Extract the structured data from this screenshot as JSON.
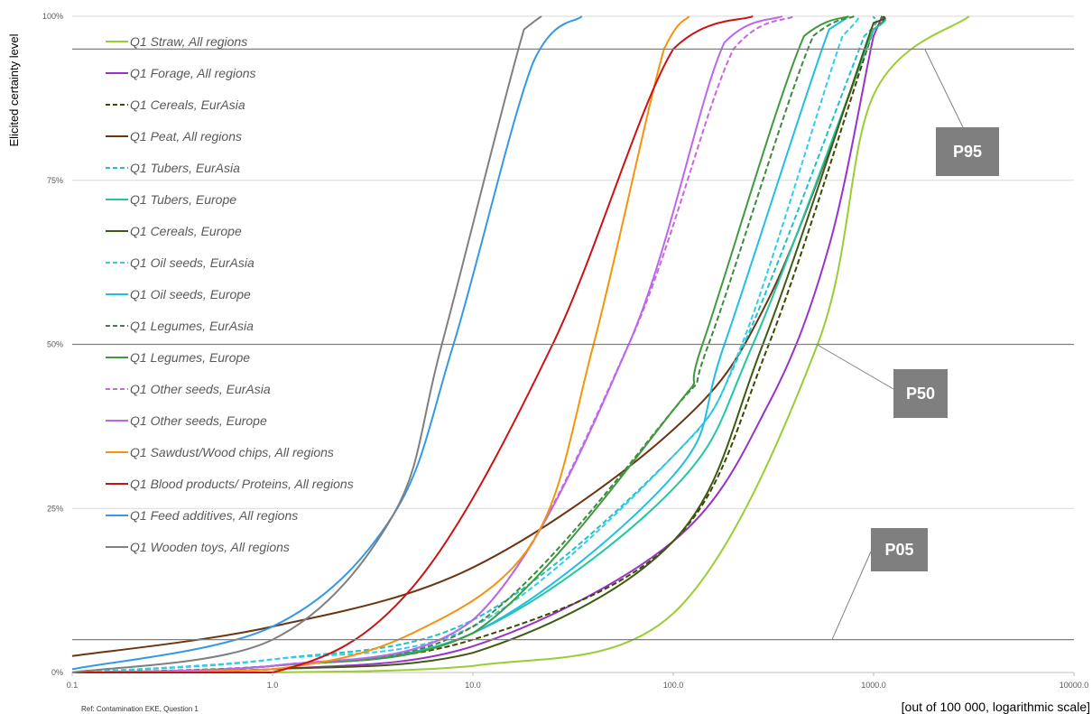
{
  "chart_data": {
    "type": "line",
    "ylabel": "Elicited certainty level",
    "xlabel": "[out of 100 000, logarithmic scale]",
    "reference": "Ref: Contamination EKE, Question 1",
    "x_scale": "log",
    "xlim": [
      0.1,
      10000.0
    ],
    "ylim": [
      0,
      1
    ],
    "x_ticks": [
      "0.1",
      "1.0",
      "10.0",
      "100.0",
      "1000.0",
      "10000.0"
    ],
    "y_ticks": [
      "0%",
      "25%",
      "50%",
      "75%",
      "100%"
    ],
    "grid": true,
    "legend_position": "top-left",
    "percentile_lines": [
      {
        "label": "P05",
        "level": 0.05
      },
      {
        "label": "P50",
        "level": 0.5
      },
      {
        "label": "P95",
        "level": 0.95
      }
    ],
    "series": [
      {
        "name": "Q1 Straw, All regions",
        "color": "#9acd32",
        "dash": "solid",
        "x": [
          1,
          10,
          100,
          525,
          1000,
          3000
        ],
        "y": [
          0,
          0.01,
          0.09,
          0.5,
          0.88,
          1.0
        ]
      },
      {
        "name": "Q1 Forage, All regions",
        "color": "#9932cc",
        "dash": "solid",
        "x": [
          0.1,
          1,
          10,
          100,
          300,
          600,
          1000,
          1100
        ],
        "y": [
          0,
          0.005,
          0.04,
          0.2,
          0.41,
          0.65,
          0.97,
          1.0
        ]
      },
      {
        "name": "Q1 Cereals, EurAsia",
        "color": "#3b4a00",
        "dash": "dash",
        "x": [
          0.1,
          1,
          10,
          100,
          300,
          1000,
          1100
        ],
        "y": [
          0,
          0.01,
          0.05,
          0.2,
          0.5,
          0.98,
          1.0
        ]
      },
      {
        "name": "Q1 Peat, All regions",
        "color": "#6b3510",
        "dash": "solid",
        "x": [
          0.1,
          1,
          10,
          100,
          300,
          1000,
          1100
        ],
        "y": [
          0.025,
          0.07,
          0.16,
          0.37,
          0.57,
          0.98,
          1.0
        ]
      },
      {
        "name": "Q1 Tubers, EurAsia",
        "color": "#20c0c8",
        "dash": "dash",
        "x": [
          0.1,
          1,
          10,
          100,
          225,
          900,
          1000
        ],
        "y": [
          0,
          0.02,
          0.08,
          0.33,
          0.5,
          0.97,
          1.0
        ]
      },
      {
        "name": "Q1 Tubers, Europe",
        "color": "#20c8a0",
        "dash": "solid",
        "x": [
          0.1,
          1,
          10,
          100,
          250,
          1000,
          1100
        ],
        "y": [
          0,
          0.01,
          0.06,
          0.28,
          0.5,
          0.98,
          1.0
        ]
      },
      {
        "name": "Q1 Cereals, Europe",
        "color": "#3d5a10",
        "dash": "solid",
        "x": [
          0.1,
          1,
          10,
          100,
          280,
          1000,
          1100
        ],
        "y": [
          0,
          0.005,
          0.03,
          0.2,
          0.5,
          0.99,
          1.0
        ]
      },
      {
        "name": "Q1 Oil seeds, EurAsia",
        "color": "#33ccee",
        "dash": "dash",
        "x": [
          0.1,
          1,
          10,
          100,
          220,
          700,
          850
        ],
        "y": [
          0,
          0.02,
          0.07,
          0.33,
          0.5,
          0.97,
          1.0
        ]
      },
      {
        "name": "Q1 Oil seeds, Europe",
        "color": "#22bde6",
        "dash": "solid",
        "x": [
          0.1,
          1,
          10,
          100,
          180,
          600,
          750
        ],
        "y": [
          0,
          0.01,
          0.06,
          0.3,
          0.5,
          0.98,
          1.0
        ]
      },
      {
        "name": "Q1 Legumes, EurAsia",
        "color": "#3d8a3d",
        "dash": "dash",
        "x": [
          0.1,
          1,
          10,
          100,
          150,
          500,
          800
        ],
        "y": [
          0,
          0.01,
          0.07,
          0.4,
          0.5,
          0.97,
          1.0
        ]
      },
      {
        "name": "Q1 Legumes, Europe",
        "color": "#3f9a3f",
        "dash": "solid",
        "x": [
          0.1,
          1,
          10,
          100,
          140,
          450,
          750
        ],
        "y": [
          0,
          0.01,
          0.06,
          0.4,
          0.5,
          0.97,
          1.0
        ]
      },
      {
        "name": "Q1 Other seeds, EurAsia",
        "color": "#cc66dd",
        "dash": "dash",
        "x": [
          0.1,
          1,
          10,
          60,
          200,
          400
        ],
        "y": [
          0,
          0.01,
          0.08,
          0.5,
          0.95,
          1.0
        ]
      },
      {
        "name": "Q1 Other seeds, Europe",
        "color": "#bb66ee",
        "dash": "solid",
        "x": [
          0.1,
          1,
          10,
          60,
          180,
          350
        ],
        "y": [
          0,
          0.01,
          0.08,
          0.5,
          0.96,
          1.0
        ]
      },
      {
        "name": "Q1 Sawdust/Wood chips, All regions",
        "color": "#f5930a",
        "dash": "solid",
        "x": [
          0.1,
          1,
          5,
          20,
          40,
          90,
          120
        ],
        "y": [
          0,
          0.005,
          0.06,
          0.2,
          0.5,
          0.95,
          1.0
        ]
      },
      {
        "name": "Q1 Blood products/ Proteins, All regions",
        "color": "#cc1111",
        "dash": "solid",
        "x": [
          0.1,
          1,
          5,
          25,
          100,
          250
        ],
        "y": [
          0,
          0,
          0.13,
          0.5,
          0.95,
          1.0
        ]
      },
      {
        "name": "Q1 Feed additives, All regions",
        "color": "#3399e6",
        "dash": "solid",
        "x": [
          0.1,
          1,
          4,
          8,
          20,
          35
        ],
        "y": [
          0.005,
          0.07,
          0.24,
          0.5,
          0.93,
          1.0
        ]
      },
      {
        "name": "Q1 Wooden toys, All regions",
        "color": "#7f7f7f",
        "dash": "solid",
        "x": [
          0.1,
          1,
          4,
          7,
          18,
          22
        ],
        "y": [
          0,
          0.05,
          0.24,
          0.5,
          0.98,
          1.0
        ]
      }
    ]
  }
}
